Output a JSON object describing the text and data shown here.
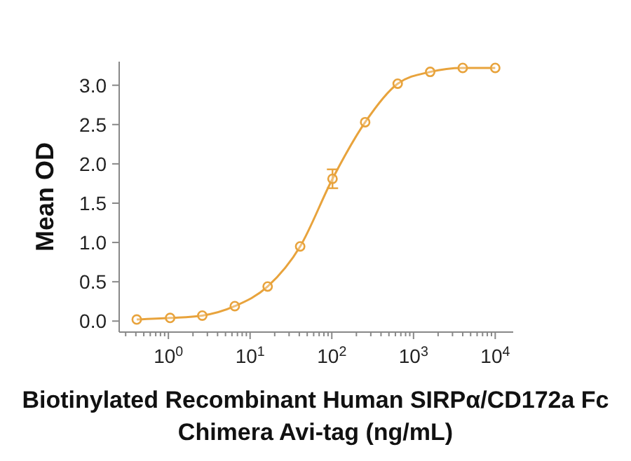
{
  "chart_data": {
    "type": "line",
    "xlabel": "Biotinylated Recombinant Human SIRPα/CD172a Fc Chimera Avi-tag (ng/mL)",
    "ylabel": "Mean OD",
    "log": "x",
    "marker": "circle",
    "line_style": "solid",
    "grid": false,
    "x": [
      0.41,
      1.05,
      2.6,
      6.5,
      16.4,
      41,
      102,
      256,
      640,
      1600,
      4000,
      10000
    ],
    "series": [
      {
        "color": "#e8a33c",
        "values": [
          0.02,
          0.04,
          0.07,
          0.19,
          0.44,
          0.95,
          1.81,
          2.53,
          3.02,
          3.17,
          3.22,
          3.22
        ],
        "errors": [
          null,
          null,
          null,
          null,
          null,
          null,
          0.12,
          null,
          null,
          null,
          null,
          null
        ]
      }
    ],
    "xlim": [
      0.25,
      16600
    ],
    "ylim": [
      -0.14,
      3.3
    ],
    "xticks": [
      {
        "value": 0.3,
        "label": null
      },
      {
        "value": 0.4,
        "label": null
      },
      {
        "value": 0.5,
        "label": null
      },
      {
        "value": 0.6,
        "label": null
      },
      {
        "value": 0.7,
        "label": null
      },
      {
        "value": 0.8,
        "label": null
      },
      {
        "value": 0.9,
        "label": null
      },
      {
        "value": 1,
        "label": "10$^{0}$"
      },
      {
        "value": 2,
        "label": null
      },
      {
        "value": 3,
        "label": null
      },
      {
        "value": 4,
        "label": null
      },
      {
        "value": 5,
        "label": null
      },
      {
        "value": 6,
        "label": null
      },
      {
        "value": 7,
        "label": null
      },
      {
        "value": 8,
        "label": null
      },
      {
        "value": 9,
        "label": null
      },
      {
        "value": 10,
        "label": "10$^{1}$"
      },
      {
        "value": 20,
        "label": null
      },
      {
        "value": 30,
        "label": null
      },
      {
        "value": 40,
        "label": null
      },
      {
        "value": 50,
        "label": null
      },
      {
        "value": 60,
        "label": null
      },
      {
        "value": 70,
        "label": null
      },
      {
        "value": 80,
        "label": null
      },
      {
        "value": 90,
        "label": null
      },
      {
        "value": 100,
        "label": "10$^{2}$"
      },
      {
        "value": 200,
        "label": null
      },
      {
        "value": 300,
        "label": null
      },
      {
        "value": 400,
        "label": null
      },
      {
        "value": 500,
        "label": null
      },
      {
        "value": 600,
        "label": null
      },
      {
        "value": 700,
        "label": null
      },
      {
        "value": 800,
        "label": null
      },
      {
        "value": 900,
        "label": null
      },
      {
        "value": 1000,
        "label": "10$^{3}$"
      },
      {
        "value": 2000,
        "label": null
      },
      {
        "value": 3000,
        "label": null
      },
      {
        "value": 4000,
        "label": null
      },
      {
        "value": 5000,
        "label": null
      },
      {
        "value": 6000,
        "label": null
      },
      {
        "value": 7000,
        "label": null
      },
      {
        "value": 8000,
        "label": null
      },
      {
        "value": 9000,
        "label": null
      },
      {
        "value": 10000,
        "label": "10$^{4}$"
      }
    ],
    "yticks": [
      {
        "value": 0,
        "label": "0.0"
      },
      {
        "value": 0.5,
        "label": "0.5"
      },
      {
        "value": 1,
        "label": "1.0"
      },
      {
        "value": 1.5,
        "label": "1.5"
      },
      {
        "value": 2,
        "label": "2.0"
      },
      {
        "value": 2.5,
        "label": "2.5"
      },
      {
        "value": 3,
        "label": "3.0"
      }
    ]
  }
}
